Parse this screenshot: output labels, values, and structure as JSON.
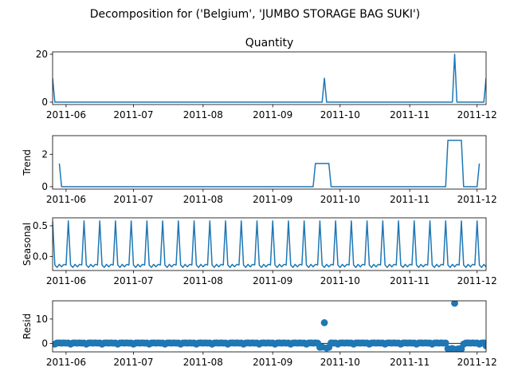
{
  "figure": {
    "suptitle": "Decomposition for ('Belgium', 'JUMBO STORAGE BAG SUKI')"
  },
  "chart_data": [
    {
      "type": "line",
      "title": "Quantity",
      "xlabel": "",
      "ylabel": "",
      "x_tick_labels": [
        "2011-06",
        "2011-07",
        "2011-08",
        "2011-09",
        "2011-10",
        "2011-11",
        "2011-12"
      ],
      "x_range": [
        "2011-05-26",
        "2011-12-05"
      ],
      "ylim": [
        -1,
        21
      ],
      "y_ticks": [
        0,
        20
      ],
      "color": "#1f77b4",
      "grid": false,
      "series": [
        {
          "points": [
            [
              "2011-05-26",
              10
            ],
            [
              "2011-05-27",
              0
            ],
            [
              "2011-09-23",
              0
            ],
            [
              "2011-09-24",
              10
            ],
            [
              "2011-09-25",
              0
            ],
            [
              "2011-11-20",
              0
            ],
            [
              "2011-11-21",
              20
            ],
            [
              "2011-11-22",
              0
            ],
            [
              "2011-12-04",
              0
            ],
            [
              "2011-12-05",
              10
            ]
          ]
        }
      ]
    },
    {
      "type": "line",
      "title": "",
      "xlabel": "",
      "ylabel": "Trend",
      "x_tick_labels": [
        "2011-06",
        "2011-07",
        "2011-08",
        "2011-09",
        "2011-10",
        "2011-11",
        "2011-12"
      ],
      "x_range": [
        "2011-05-26",
        "2011-12-05"
      ],
      "ylim": [
        -0.15,
        3.15
      ],
      "y_ticks": [
        0,
        2
      ],
      "color": "#1f77b4",
      "grid": false,
      "series": [
        {
          "points": [
            [
              "2011-05-29",
              1.43
            ],
            [
              "2011-05-30",
              0
            ],
            [
              "2011-09-19",
              0
            ],
            [
              "2011-09-20",
              1.43
            ],
            [
              "2011-09-26",
              1.43
            ],
            [
              "2011-09-27",
              0
            ],
            [
              "2011-11-17",
              0
            ],
            [
              "2011-11-18",
              2.86
            ],
            [
              "2011-11-24",
              2.86
            ],
            [
              "2011-11-25",
              0
            ],
            [
              "2011-12-01",
              0
            ],
            [
              "2011-12-02",
              1.43
            ]
          ]
        }
      ]
    },
    {
      "type": "line",
      "title": "",
      "xlabel": "",
      "ylabel": "Seasonal",
      "x_tick_labels": [
        "2011-06",
        "2011-07",
        "2011-08",
        "2011-09",
        "2011-10",
        "2011-11",
        "2011-12"
      ],
      "x_range": [
        "2011-05-26",
        "2011-12-05"
      ],
      "ylim": [
        -0.23,
        0.63
      ],
      "y_ticks": [
        -0.0,
        0.5
      ],
      "y_tick_labels": [
        "0.0",
        "0.5"
      ],
      "color": "#1f77b4",
      "grid": false,
      "period_days": 7,
      "pattern": [
        0.58,
        -0.14,
        -0.18,
        -0.13,
        -0.17,
        -0.13,
        -0.14
      ],
      "pattern_start": "2011-05-26"
    },
    {
      "type": "scatter",
      "title": "",
      "xlabel": "",
      "ylabel": "Resid",
      "x_tick_labels": [
        "2011-06",
        "2011-07",
        "2011-08",
        "2011-09",
        "2011-10",
        "2011-11",
        "2011-12"
      ],
      "x_range": [
        "2011-05-26",
        "2011-12-05"
      ],
      "ylim": [
        -3.5,
        17.5
      ],
      "y_ticks": [
        0,
        10
      ],
      "zero_line": true,
      "color": "#1f77b4",
      "grid": false,
      "outliers": [
        [
          "2011-09-24",
          8.5
        ],
        [
          "2011-11-21",
          16.5
        ],
        [
          "2011-09-22",
          -1.6
        ],
        [
          "2011-09-23",
          -1.5
        ],
        [
          "2011-09-25",
          -1.9
        ],
        [
          "2011-09-26",
          -1.6
        ],
        [
          "2011-11-18",
          -2.2
        ],
        [
          "2011-11-19",
          -2.3
        ],
        [
          "2011-11-20",
          -2.1
        ],
        [
          "2011-11-22",
          -2.4
        ],
        [
          "2011-11-23",
          -2.2
        ],
        [
          "2011-11-24",
          -2.3
        ],
        [
          "2011-12-05",
          -1.0
        ]
      ],
      "baseline_cycle": [
        -0.3,
        0.15,
        0.2,
        0.1,
        0.2,
        0.1,
        0.15
      ]
    }
  ]
}
